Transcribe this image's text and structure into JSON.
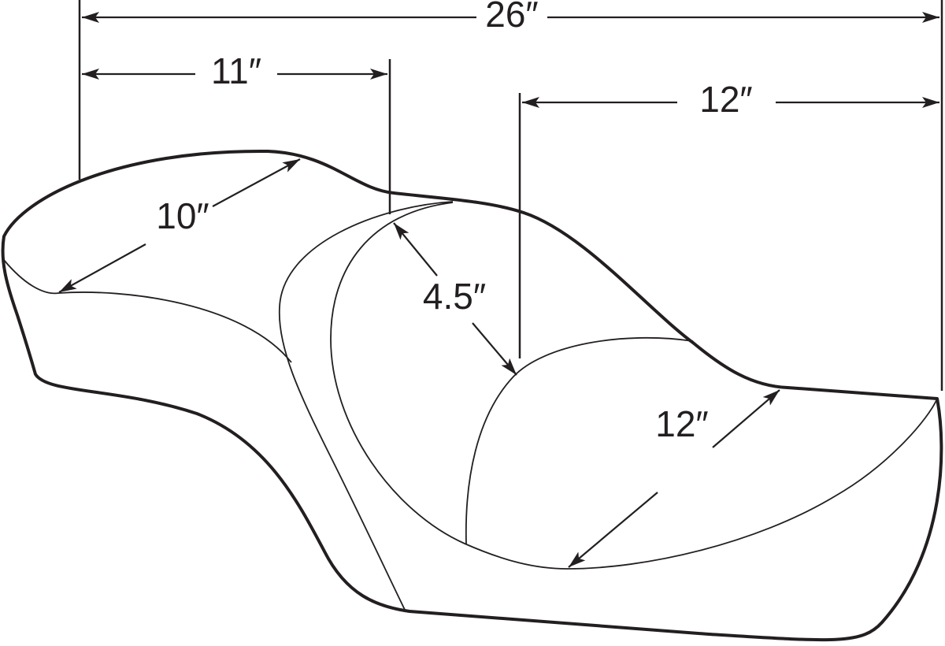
{
  "diagram": {
    "subject": "motorcycle seat dimensions",
    "line_color": "#231f20",
    "dimensions": {
      "overall_length": "26″",
      "rider_length": "11″",
      "passenger_length": "12″",
      "rider_width": "10″",
      "backrest_gap": "4.5″",
      "passenger_width": "12″"
    }
  }
}
